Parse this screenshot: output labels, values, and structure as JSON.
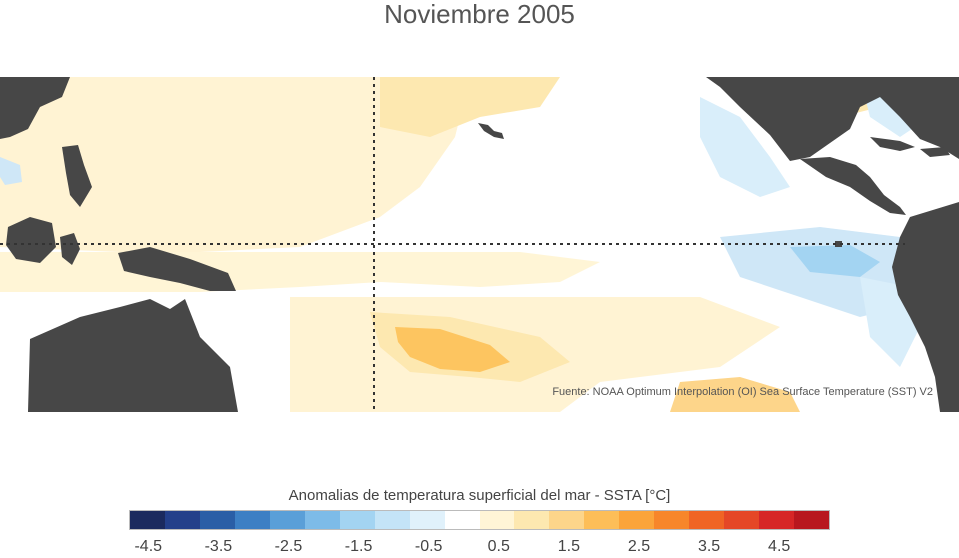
{
  "title": "Noviembre 2005",
  "source": "Fuente: NOAA Optimum Interpolation (OI) Sea Surface Temperature (SST) V2",
  "legend": {
    "title": "Anomalias de temperatura superficial del mar - SSTA  [°C]",
    "ticks": [
      "-4.5",
      "-3.5",
      "-2.5",
      "-1.5",
      "-0.5",
      "0.5",
      "1.5",
      "2.5",
      "3.5",
      "4.5"
    ],
    "colors": [
      "#1b2a5e",
      "#233f8a",
      "#2a5ea6",
      "#3c7fc4",
      "#5a9fd8",
      "#7dbbe8",
      "#a3d4f2",
      "#c4e4f7",
      "#e0f1fb",
      "#ffffff",
      "#fff5d6",
      "#fde8b0",
      "#fdd58a",
      "#fdbe58",
      "#fba43a",
      "#f7862a",
      "#f06424",
      "#e54726",
      "#d62626",
      "#b8171e"
    ]
  },
  "colors": {
    "land": "#474747",
    "ocean_base": "#ffffff",
    "guides": "#333333"
  }
}
